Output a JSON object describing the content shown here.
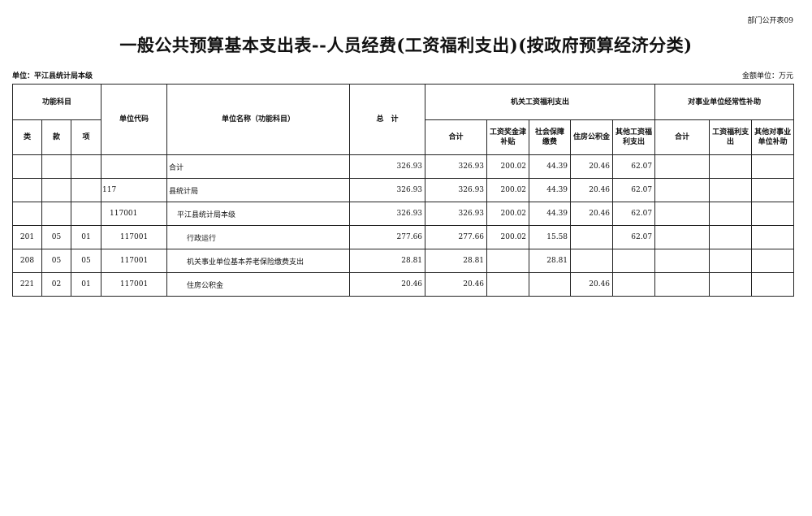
{
  "form_no": "部门公开表09",
  "title": "一般公共预算基本支出表--人员经费(工资福利支出)(按政府预算经济分类)",
  "unit_label": "单位：平江县统计局本级",
  "money_unit": "金额单位：万元",
  "headers": {
    "func": "功能科目",
    "lei": "类",
    "kuan": "款",
    "xiang": "项",
    "code": "单位代码",
    "name": "单位名称（功能科目）",
    "total": "总　计",
    "jg": "机关工资福利支出",
    "jg_total": "合计",
    "jg_wage": "工资奖金津补贴",
    "jg_social": "社会保障缴费",
    "jg_housing": "住房公积金",
    "jg_other": "其他工资福利支出",
    "sy": "对事业单位经常性补助",
    "sy_total": "合计",
    "sy_wage": "工资福利支出",
    "sy_other": "其他对事业单位补助"
  },
  "rows": [
    {
      "lei": "",
      "kuan": "",
      "xiang": "",
      "code": "",
      "name": "合计",
      "total": "326.93",
      "jg_total": "326.93",
      "jg_wage": "200.02",
      "jg_social": "44.39",
      "jg_housing": "20.46",
      "jg_other": "62.07",
      "sy_total": "",
      "sy_wage": "",
      "sy_other": ""
    },
    {
      "lei": "",
      "kuan": "",
      "xiang": "",
      "code": "117",
      "name": "县统计局",
      "total": "326.93",
      "jg_total": "326.93",
      "jg_wage": "200.02",
      "jg_social": "44.39",
      "jg_housing": "20.46",
      "jg_other": "62.07",
      "sy_total": "",
      "sy_wage": "",
      "sy_other": ""
    },
    {
      "lei": "",
      "kuan": "",
      "xiang": "",
      "code": "117001",
      "name": "平江县统计局本级",
      "total": "326.93",
      "jg_total": "326.93",
      "jg_wage": "200.02",
      "jg_social": "44.39",
      "jg_housing": "20.46",
      "jg_other": "62.07",
      "sy_total": "",
      "sy_wage": "",
      "sy_other": ""
    },
    {
      "lei": "201",
      "kuan": "05",
      "xiang": "01",
      "code": "117001",
      "name": "行政运行",
      "total": "277.66",
      "jg_total": "277.66",
      "jg_wage": "200.02",
      "jg_social": "15.58",
      "jg_housing": "",
      "jg_other": "62.07",
      "sy_total": "",
      "sy_wage": "",
      "sy_other": ""
    },
    {
      "lei": "208",
      "kuan": "05",
      "xiang": "05",
      "code": "117001",
      "name": "机关事业单位基本养老保险缴费支出",
      "total": "28.81",
      "jg_total": "28.81",
      "jg_wage": "",
      "jg_social": "28.81",
      "jg_housing": "",
      "jg_other": "",
      "sy_total": "",
      "sy_wage": "",
      "sy_other": ""
    },
    {
      "lei": "221",
      "kuan": "02",
      "xiang": "01",
      "code": "117001",
      "name": "住房公积金",
      "total": "20.46",
      "jg_total": "20.46",
      "jg_wage": "",
      "jg_social": "",
      "jg_housing": "20.46",
      "jg_other": "",
      "sy_total": "",
      "sy_wage": "",
      "sy_other": ""
    }
  ]
}
